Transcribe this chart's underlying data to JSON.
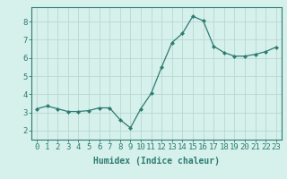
{
  "x": [
    0,
    1,
    2,
    3,
    4,
    5,
    6,
    7,
    8,
    9,
    10,
    11,
    12,
    13,
    14,
    15,
    16,
    17,
    18,
    19,
    20,
    21,
    22,
    23
  ],
  "y": [
    3.2,
    3.35,
    3.2,
    3.05,
    3.05,
    3.1,
    3.25,
    3.25,
    2.6,
    2.15,
    3.2,
    4.05,
    5.5,
    6.85,
    7.35,
    8.3,
    8.05,
    6.65,
    6.3,
    6.1,
    6.1,
    6.2,
    6.35,
    6.6
  ],
  "line_color": "#2d7c70",
  "marker": "D",
  "marker_size": 2.0,
  "bg_color": "#d6f0ec",
  "grid_color": "#b8d8d4",
  "xlabel": "Humidex (Indice chaleur)",
  "xlim": [
    -0.5,
    23.5
  ],
  "ylim": [
    1.5,
    8.8
  ],
  "yticks": [
    2,
    3,
    4,
    5,
    6,
    7,
    8
  ],
  "xticks": [
    0,
    1,
    2,
    3,
    4,
    5,
    6,
    7,
    8,
    9,
    10,
    11,
    12,
    13,
    14,
    15,
    16,
    17,
    18,
    19,
    20,
    21,
    22,
    23
  ],
  "tick_color": "#2d7c70",
  "label_fontsize": 7,
  "tick_fontsize": 6.5
}
